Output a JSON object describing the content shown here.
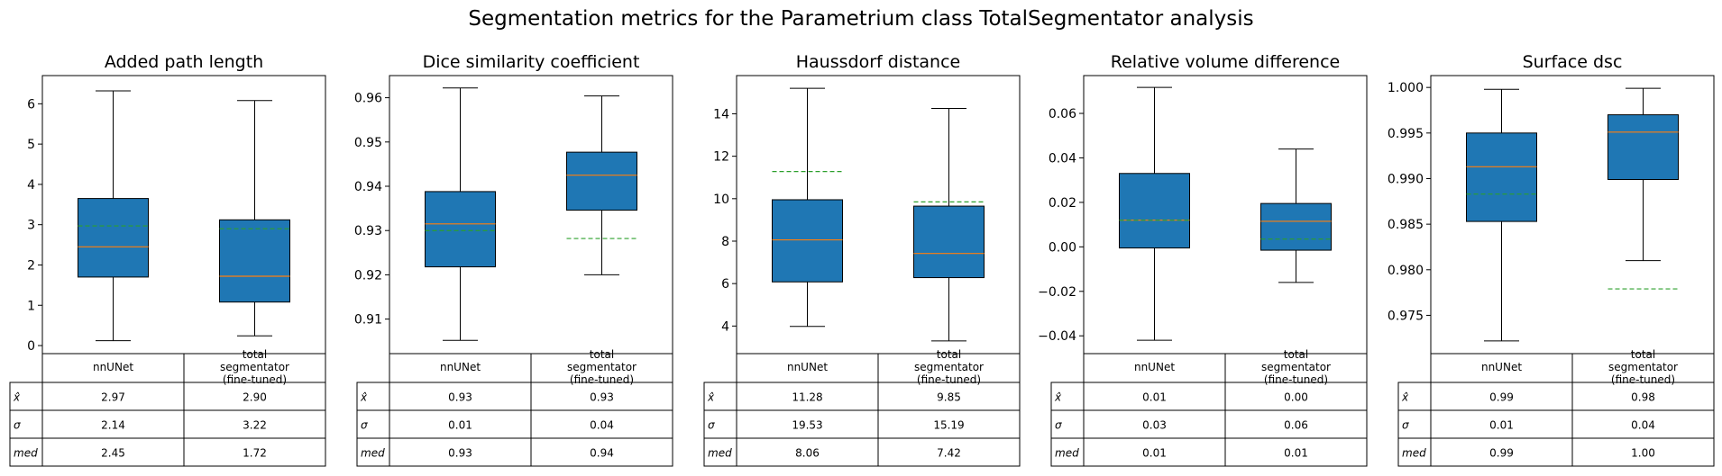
{
  "figure": {
    "title": "Segmentation metrics for the Parametrium class TotalSegmentator analysis",
    "colors": {
      "box_fill": "#1f77b4",
      "median_line": "#ff7f0e",
      "mean_line": "#2ca02c",
      "edge": "#000000"
    }
  },
  "chart_data": [
    {
      "type": "box",
      "title": "Added path length",
      "categories": [
        "nnUNet",
        "total segmentator (fine-tuned)"
      ],
      "ylim": [
        -0.2,
        6.7
      ],
      "yticks": [
        0,
        1,
        2,
        3,
        4,
        5,
        6
      ],
      "ytick_labels": [
        "0",
        "1",
        "2",
        "3",
        "4",
        "5",
        "6"
      ],
      "boxes": [
        {
          "whislo": 0.12,
          "q1": 1.7,
          "med": 2.45,
          "q3": 3.65,
          "whishi": 6.32,
          "mean": 2.97
        },
        {
          "whislo": 0.24,
          "q1": 1.08,
          "med": 1.72,
          "q3": 3.12,
          "whishi": 6.08,
          "mean": 2.9
        }
      ],
      "table": {
        "columns": [
          "nnUNet",
          "total\nsegmentator\n(fine-tuned)"
        ],
        "rows": [
          {
            "label": "x̂",
            "values": [
              "2.97",
              "2.90"
            ]
          },
          {
            "label": "σ",
            "values": [
              "2.14",
              "3.22"
            ]
          },
          {
            "label": "med",
            "values": [
              "2.45",
              "1.72"
            ]
          }
        ]
      }
    },
    {
      "type": "box",
      "title": "Dice similarity coefficient",
      "categories": [
        "nnUNet",
        "total segmentator (fine-tuned)"
      ],
      "ylim": [
        0.9022,
        0.965
      ],
      "yticks": [
        0.91,
        0.92,
        0.93,
        0.94,
        0.95,
        0.96
      ],
      "ytick_labels": [
        "0.91",
        "0.92",
        "0.93",
        "0.94",
        "0.95",
        "0.96"
      ],
      "boxes": [
        {
          "whislo": 0.9052,
          "q1": 0.9218,
          "med": 0.9315,
          "q3": 0.9388,
          "whishi": 0.9622,
          "mean": 0.93
        },
        {
          "whislo": 0.92,
          "q1": 0.9346,
          "med": 0.9425,
          "q3": 0.9477,
          "whishi": 0.9604,
          "mean": 0.9282
        }
      ],
      "table": {
        "columns": [
          "nnUNet",
          "total\nsegmentator\n(fine-tuned)"
        ],
        "rows": [
          {
            "label": "x̂",
            "values": [
              "0.93",
              "0.93"
            ]
          },
          {
            "label": "σ",
            "values": [
              "0.01",
              "0.04"
            ]
          },
          {
            "label": "med",
            "values": [
              "0.93",
              "0.94"
            ]
          }
        ]
      }
    },
    {
      "type": "box",
      "title": "Haussdorf distance",
      "categories": [
        "nnUNet",
        "total segmentator (fine-tuned)"
      ],
      "ylim": [
        2.7,
        15.8
      ],
      "yticks": [
        4,
        6,
        8,
        10,
        12,
        14
      ],
      "ytick_labels": [
        "4",
        "6",
        "8",
        "10",
        "12",
        "14"
      ],
      "boxes": [
        {
          "whislo": 3.98,
          "q1": 6.08,
          "med": 8.06,
          "q3": 9.95,
          "whishi": 15.2,
          "mean": 11.28
        },
        {
          "whislo": 3.3,
          "q1": 6.28,
          "med": 7.42,
          "q3": 9.65,
          "whishi": 14.25,
          "mean": 9.85
        }
      ],
      "table": {
        "columns": [
          "nnUNet",
          "total\nsegmentator\n(fine-tuned)"
        ],
        "rows": [
          {
            "label": "x̂",
            "values": [
              "11.28",
              "9.85"
            ]
          },
          {
            "label": "σ",
            "values": [
              "19.53",
              "15.19"
            ]
          },
          {
            "label": "med",
            "values": [
              "8.06",
              "7.42"
            ]
          }
        ]
      }
    },
    {
      "type": "box",
      "title": "Relative volume difference",
      "categories": [
        "nnUNet",
        "total segmentator (fine-tuned)"
      ],
      "ylim": [
        -0.048,
        0.077
      ],
      "yticks": [
        -0.04,
        -0.02,
        0.0,
        0.02,
        0.04,
        0.06
      ],
      "ytick_labels": [
        "−0.04",
        "−0.02",
        "0.00",
        "0.02",
        "0.04",
        "0.06"
      ],
      "boxes": [
        {
          "whislo": -0.042,
          "q1": -0.0005,
          "med": 0.012,
          "q3": 0.033,
          "whishi": 0.0717,
          "mean": 0.012
        },
        {
          "whislo": -0.016,
          "q1": -0.0015,
          "med": 0.0115,
          "q3": 0.0195,
          "whishi": 0.044,
          "mean": 0.0035
        }
      ],
      "table": {
        "columns": [
          "nnUNet",
          "total\nsegmentator\n(fine-tuned)"
        ],
        "rows": [
          {
            "label": "x̂",
            "values": [
              "0.01",
              "0.00"
            ]
          },
          {
            "label": "σ",
            "values": [
              "0.03",
              "0.06"
            ]
          },
          {
            "label": "med",
            "values": [
              "0.01",
              "0.01"
            ]
          }
        ]
      }
    },
    {
      "type": "box",
      "title": "Surface dsc",
      "categories": [
        "nnUNet",
        "total segmentator (fine-tuned)"
      ],
      "ylim": [
        0.9708,
        1.0013
      ],
      "yticks": [
        0.975,
        0.98,
        0.985,
        0.99,
        0.995,
        1.0
      ],
      "ytick_labels": [
        "0.975",
        "0.980",
        "0.985",
        "0.990",
        "0.995",
        "1.000"
      ],
      "boxes": [
        {
          "whislo": 0.9722,
          "q1": 0.9853,
          "med": 0.9913,
          "q3": 0.995,
          "whishi": 0.9998,
          "mean": 0.9883
        },
        {
          "whislo": 0.981,
          "q1": 0.9899,
          "med": 0.9951,
          "q3": 0.997,
          "whishi": 0.9999,
          "mean": 0.9779
        }
      ],
      "table": {
        "columns": [
          "nnUNet",
          "total\nsegmentator\n(fine-tuned)"
        ],
        "rows": [
          {
            "label": "x̂",
            "values": [
              "0.99",
              "0.98"
            ]
          },
          {
            "label": "σ",
            "values": [
              "0.01",
              "0.04"
            ]
          },
          {
            "label": "med",
            "values": [
              "0.99",
              "1.00"
            ]
          }
        ]
      }
    }
  ]
}
